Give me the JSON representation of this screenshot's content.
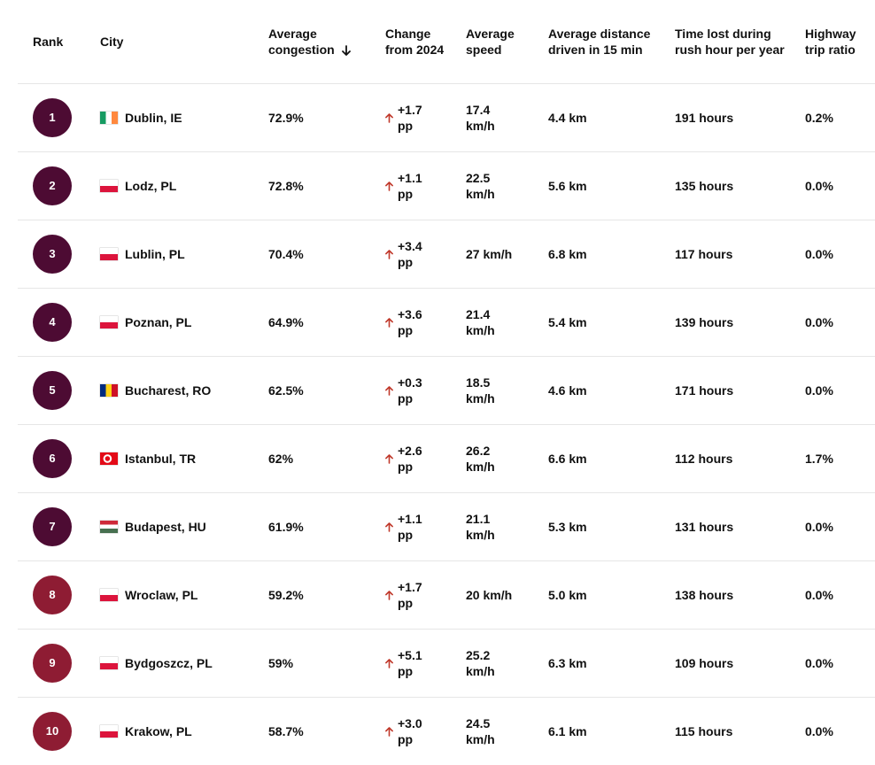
{
  "table": {
    "headers": [
      "Rank",
      "City",
      "Average congestion",
      "Change from 2024",
      "Average speed",
      "Average distance driven in 15 min",
      "Time lost during rush hour per year",
      "Highway trip ratio"
    ],
    "rows": [
      [
        1,
        "Dublin, IE",
        "72.9%",
        "+1.7 pp",
        "17.4 km/h",
        "4.4 km",
        "191 hours",
        "0.2%"
      ],
      [
        2,
        "Lodz, PL",
        "72.8%",
        "+1.1 pp",
        "22.5 km/h",
        "5.6 km",
        "135 hours",
        "0.0%"
      ],
      [
        3,
        "Lublin, PL",
        "70.4%",
        "+3.4 pp",
        "27 km/h",
        "6.8 km",
        "117 hours",
        "0.0%"
      ],
      [
        4,
        "Poznan, PL",
        "64.9%",
        "+3.6 pp",
        "21.4 km/h",
        "5.4 km",
        "139 hours",
        "0.0%"
      ],
      [
        5,
        "Bucharest, RO",
        "62.5%",
        "+0.3 pp",
        "18.5 km/h",
        "4.6 km",
        "171 hours",
        "0.0%"
      ],
      [
        6,
        "Istanbul, TR",
        "62%",
        "+2.6 pp",
        "26.2 km/h",
        "6.6 km",
        "112 hours",
        "1.7%"
      ],
      [
        7,
        "Budapest, HU",
        "61.9%",
        "+1.1 pp",
        "21.1 km/h",
        "5.3 km",
        "131 hours",
        "0.0%"
      ],
      [
        8,
        "Wroclaw, PL",
        "59.2%",
        "+1.7 pp",
        "20 km/h",
        "5.0 km",
        "138 hours",
        "0.0%"
      ],
      [
        9,
        "Bydgoszcz, PL",
        "59%",
        "+5.1 pp",
        "25.2 km/h",
        "6.3 km",
        "109 hours",
        "0.0%"
      ],
      [
        10,
        "Krakow, PL",
        "58.7%",
        "+3.0 pp",
        "24.5 km/h",
        "6.1 km",
        "115 hours",
        "0.0%"
      ]
    ]
  }
}
